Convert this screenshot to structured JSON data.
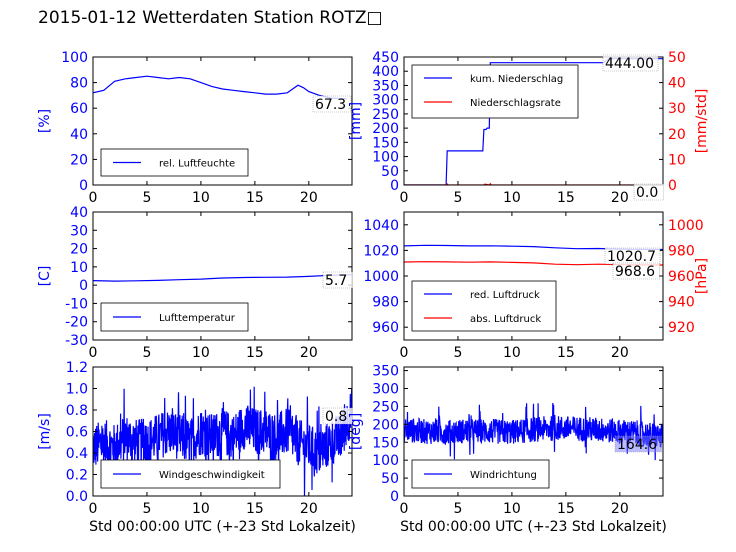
{
  "title": "2015-01-12 Wetterdaten Station ROTZ□",
  "colors": {
    "blue": "#0000ff",
    "red": "#ff0000",
    "frame": "#000000"
  },
  "chart_data": [
    {
      "id": "humidity",
      "type": "line",
      "xlabel": "",
      "ylabel": "[%]",
      "xlim": [
        0,
        24
      ],
      "ylim": [
        0,
        100
      ],
      "xticks": [
        0,
        5,
        10,
        15,
        20
      ],
      "yticks": [
        0,
        20,
        40,
        60,
        80,
        100
      ],
      "series": [
        {
          "name": "rel. Luftfeuchte",
          "color": "#0000ff",
          "x": [
            0,
            1,
            2,
            3,
            4,
            5,
            6,
            7,
            8,
            9,
            10,
            11,
            12,
            13,
            14,
            15,
            16,
            17,
            18,
            18.5,
            19,
            19.5,
            20,
            21,
            22,
            23.5
          ],
          "y": [
            72,
            74,
            81,
            83,
            84,
            85,
            84,
            83,
            84,
            83,
            80,
            77,
            75,
            74,
            73,
            72,
            71,
            71,
            72,
            75,
            78,
            76,
            73,
            70,
            68,
            67.3
          ]
        }
      ],
      "annotation": "67.3",
      "legend_location": "lower-left"
    },
    {
      "id": "precipitation",
      "type": "line",
      "xlabel": "",
      "ylabel": "[mm]",
      "ylabel_right": "[mm/std]",
      "xlim": [
        0,
        24
      ],
      "ylim": [
        0,
        450
      ],
      "ylim_right": [
        0,
        50
      ],
      "xticks": [
        0,
        5,
        10,
        15,
        20
      ],
      "yticks": [
        0,
        50,
        100,
        150,
        200,
        250,
        300,
        350,
        400,
        450
      ],
      "yticks_right": [
        0,
        10,
        20,
        30,
        40,
        50
      ],
      "series": [
        {
          "name": "kum. Niederschlag",
          "color": "#0000ff",
          "axis": "left",
          "x": [
            0,
            3.9,
            4.0,
            7.3,
            7.4,
            7.6,
            7.7,
            7.9,
            8.0,
            18.5,
            19.0,
            24
          ],
          "y": [
            0,
            0,
            120,
            120,
            195,
            195,
            200,
            200,
            430,
            430,
            444,
            444
          ]
        },
        {
          "name": "Niederschlagsrate",
          "color": "#ff0000",
          "axis": "right",
          "x": [
            0,
            3.9,
            4.0,
            4.1,
            7.4,
            7.5,
            7.9,
            8.0,
            8.1,
            24
          ],
          "y": [
            0,
            0,
            0.4,
            0,
            0,
            0.3,
            0,
            0.5,
            0,
            0
          ]
        }
      ],
      "annotations": [
        "444.00",
        "0.0"
      ],
      "legend_location": "upper-left"
    },
    {
      "id": "temperature",
      "type": "line",
      "xlabel": "",
      "ylabel": "[C]",
      "xlim": [
        0,
        24
      ],
      "ylim": [
        -30,
        40
      ],
      "xticks": [
        0,
        5,
        10,
        15,
        20
      ],
      "yticks": [
        -30,
        -20,
        -10,
        0,
        10,
        20,
        30,
        40
      ],
      "series": [
        {
          "name": "Lufttemperatur",
          "color": "#0000ff",
          "x": [
            0,
            2,
            4,
            6,
            8,
            10,
            12,
            14,
            16,
            18,
            20,
            22,
            24
          ],
          "y": [
            2.5,
            2.2,
            2.4,
            2.6,
            3.0,
            3.3,
            3.9,
            4.2,
            4.3,
            4.4,
            4.8,
            5.4,
            5.7
          ]
        }
      ],
      "annotation": "5.7",
      "legend_location": "lower-left"
    },
    {
      "id": "pressure",
      "type": "line",
      "xlabel": "",
      "ylabel": "",
      "ylabel_right": "[hPa]",
      "xlim": [
        0,
        24
      ],
      "ylim": [
        950,
        1050
      ],
      "ylim_right": [
        910,
        1010
      ],
      "xticks": [
        0,
        5,
        10,
        15,
        20
      ],
      "yticks": [
        960,
        980,
        1000,
        1020,
        1040
      ],
      "yticks_right": [
        920,
        940,
        960,
        980,
        1000
      ],
      "series": [
        {
          "name": "red. Luftdruck",
          "color": "#0000ff",
          "axis": "left",
          "x": [
            0,
            2,
            4,
            6,
            8,
            10,
            12,
            14,
            16,
            18,
            20,
            22,
            24
          ],
          "y": [
            1023.5,
            1024.0,
            1023.8,
            1023.5,
            1023.6,
            1023.3,
            1023.0,
            1022.0,
            1021.3,
            1021.5,
            1021.0,
            1020.8,
            1020.7
          ]
        },
        {
          "name": "abs. Luftdruck",
          "color": "#ff0000",
          "axis": "right",
          "x": [
            0,
            2,
            4,
            6,
            8,
            10,
            12,
            14,
            16,
            18,
            20,
            22,
            24
          ],
          "y": [
            970.9,
            971.2,
            971.0,
            970.8,
            971.0,
            970.6,
            970.2,
            969.2,
            968.8,
            969.2,
            968.8,
            968.7,
            968.6
          ]
        }
      ],
      "annotations": [
        "1020.7",
        "968.6"
      ],
      "legend_location": "lower-left"
    },
    {
      "id": "wind-speed",
      "type": "line",
      "xlabel": "Std 00:00:00 UTC (+-23 Std Lokalzeit)",
      "ylabel": "[m/s]",
      "xlim": [
        0,
        24
      ],
      "ylim": [
        0,
        1.2
      ],
      "xticks": [
        0,
        5,
        10,
        15,
        20
      ],
      "yticks": [
        0.0,
        0.2,
        0.4,
        0.6,
        0.8,
        1.0,
        1.2
      ],
      "series": [
        {
          "name": "Windgeschwindigkeit",
          "color": "#0000ff",
          "x": [
            0,
            1,
            2,
            3,
            4,
            5,
            6,
            7,
            8,
            9,
            10,
            11,
            12,
            13,
            14,
            15,
            16,
            17,
            18,
            19,
            20,
            21,
            22,
            23,
            24
          ],
          "y": [
            0.45,
            0.5,
            0.45,
            0.55,
            0.5,
            0.5,
            0.55,
            0.6,
            0.55,
            0.5,
            0.6,
            0.55,
            0.6,
            0.55,
            0.65,
            0.6,
            0.6,
            0.55,
            0.6,
            0.5,
            0.45,
            0.4,
            0.5,
            0.55,
            0.8
          ],
          "noise_amplitude": 0.22
        }
      ],
      "annotation": "0.8",
      "legend_location": "lower-left"
    },
    {
      "id": "wind-direction",
      "type": "line",
      "xlabel": "Std 00:00:00 UTC (+-23 Std Lokalzeit)",
      "ylabel": "[deg]",
      "xlim": [
        0,
        24
      ],
      "ylim": [
        0,
        360
      ],
      "xticks": [
        0,
        5,
        10,
        15,
        20
      ],
      "yticks": [
        0,
        50,
        100,
        150,
        200,
        250,
        300,
        350
      ],
      "series": [
        {
          "name": "Windrichtung",
          "color": "#0000ff",
          "x": [
            0,
            2,
            4,
            6,
            8,
            10,
            12,
            14,
            16,
            18,
            20,
            22,
            24
          ],
          "y": [
            185,
            180,
            178,
            182,
            180,
            178,
            185,
            190,
            188,
            185,
            180,
            175,
            164.6
          ],
          "noise_amplitude": 35
        }
      ],
      "annotation": "164.6",
      "legend_location": "lower-left"
    }
  ]
}
